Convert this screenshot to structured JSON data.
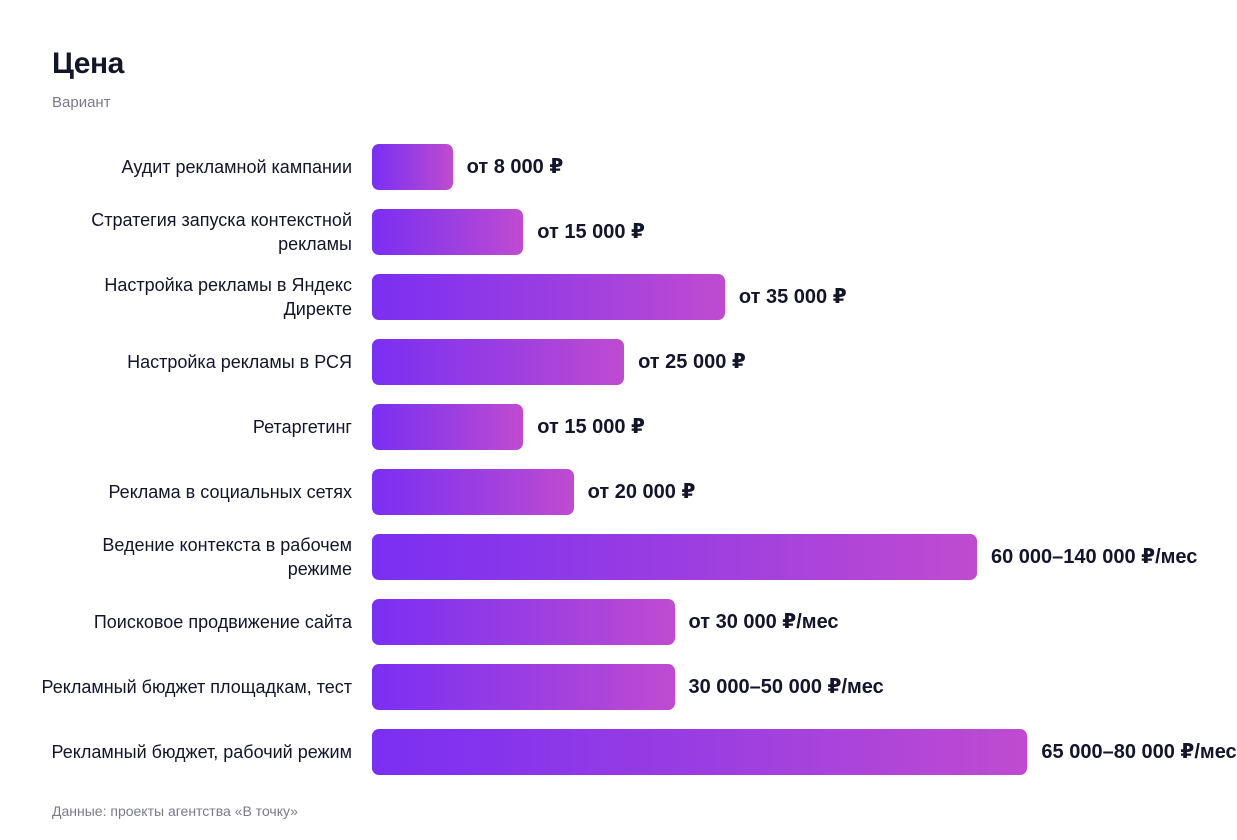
{
  "chart_data": {
    "type": "bar",
    "orientation": "horizontal",
    "title": "Цена",
    "subtitle": "Вариант",
    "source": "Данные: проекты агентства «В точку»",
    "xlim": [
      0,
      85000
    ],
    "categories": [
      "Аудит рекламной кампании",
      "Стратегия запуска контекстной рекламы",
      "Настройка рекламы в Яндекс Директе",
      "Настройка рекламы в РСЯ",
      "Ретаргетинг",
      "Реклама в социальных сетях",
      "Ведение контекста в рабочем режиме",
      "Поисковое продвижение сайта",
      "Рекламный бюджет площадкам, тест",
      "Рекламный бюджет, рабочий режим"
    ],
    "values": [
      8000,
      15000,
      35000,
      25000,
      15000,
      20000,
      60000,
      30000,
      30000,
      65000
    ],
    "value_labels": [
      "от 8 000 ₽",
      "от 15 000 ₽",
      "от 35 000 ₽",
      "от 25 000 ₽",
      "от 15 000 ₽",
      "от 20 000 ₽",
      "60 000–140 000 ₽/мес",
      "от 30 000 ₽/мес",
      "30 000–50 000 ₽/мес",
      "65 000–80 000 ₽/мес"
    ],
    "bar_gradient": [
      "#7a2ff2",
      "#c04bd0"
    ]
  }
}
